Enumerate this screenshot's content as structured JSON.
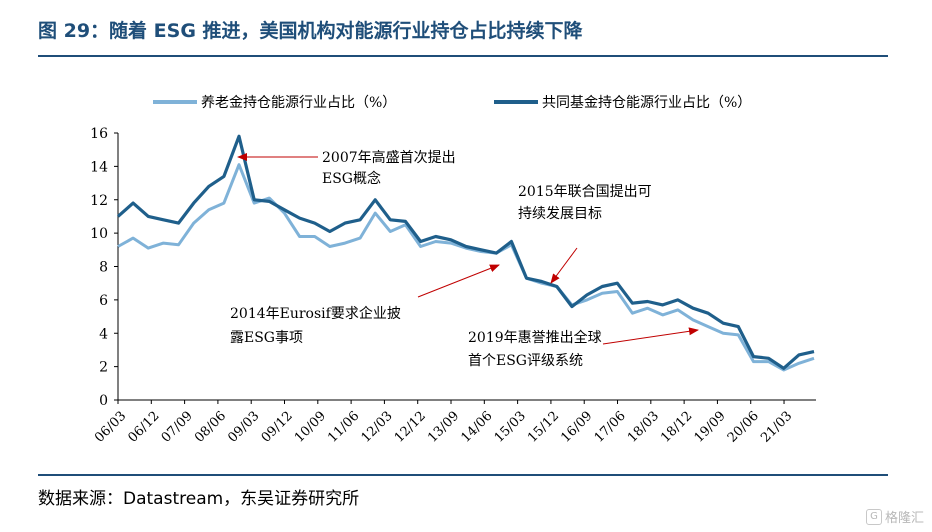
{
  "header": {
    "title": "图 29：随着 ESG 推进，美国机构对能源行业持仓占比持续下降"
  },
  "footer": {
    "source": "数据来源：Datastream，东吴证券研究所",
    "watermark": "格隆汇"
  },
  "chart_data": {
    "type": "line",
    "title": "",
    "xlabel": "",
    "ylabel": "",
    "ylim": [
      0,
      16
    ],
    "yticks": [
      0,
      2,
      4,
      6,
      8,
      10,
      12,
      14,
      16
    ],
    "xticks": [
      "06/03",
      "06/12",
      "07/09",
      "08/06",
      "09/03",
      "09/12",
      "10/09",
      "11/06",
      "12/03",
      "12/12",
      "13/09",
      "14/06",
      "15/03",
      "15/12",
      "16/09",
      "17/06",
      "18/03",
      "18/12",
      "19/09",
      "20/06",
      "21/03"
    ],
    "legend_position": "top",
    "grid": false,
    "series": [
      {
        "name": "养老金持仓能源行业占比（%）",
        "color": "#7fb2d8",
        "values": [
          9.2,
          9.7,
          9.1,
          9.4,
          9.3,
          10.6,
          11.4,
          11.8,
          14.1,
          11.8,
          12.1,
          11.2,
          9.8,
          9.8,
          9.2,
          9.4,
          9.7,
          11.2,
          10.1,
          10.5,
          9.2,
          9.5,
          9.4,
          9.1,
          8.9,
          8.8,
          9.3,
          7.3,
          7.0,
          6.8,
          5.7,
          6.0,
          6.4,
          6.5,
          5.2,
          5.5,
          5.1,
          5.4,
          4.8,
          4.4,
          4.0,
          3.9,
          2.3,
          2.3,
          1.8,
          2.2,
          2.5
        ]
      },
      {
        "name": "共同基金持仓能源行业占比（%）",
        "color": "#1f5f8b",
        "values": [
          11.0,
          11.8,
          11.0,
          10.8,
          10.6,
          11.8,
          12.8,
          13.4,
          15.8,
          12.0,
          11.9,
          11.4,
          10.9,
          10.6,
          10.1,
          10.6,
          10.8,
          12.0,
          10.8,
          10.7,
          9.5,
          9.8,
          9.6,
          9.2,
          9.0,
          8.8,
          9.5,
          7.3,
          7.1,
          6.8,
          5.6,
          6.3,
          6.8,
          7.0,
          5.8,
          5.9,
          5.7,
          6.0,
          5.5,
          5.2,
          4.6,
          4.4,
          2.6,
          2.5,
          1.9,
          2.7,
          2.9
        ]
      }
    ],
    "annotations": [
      {
        "text_lines": [
          "2007年高盛首次提出",
          "ESG概念"
        ]
      },
      {
        "text_lines": [
          "2015年联合国提出可",
          "持续发展目标"
        ]
      },
      {
        "text_lines": [
          "2014年Eurosif要求企业披",
          "露ESG事项"
        ]
      },
      {
        "text_lines": [
          "2019年惠誉推出全球",
          "首个ESG评级系统"
        ]
      }
    ]
  }
}
